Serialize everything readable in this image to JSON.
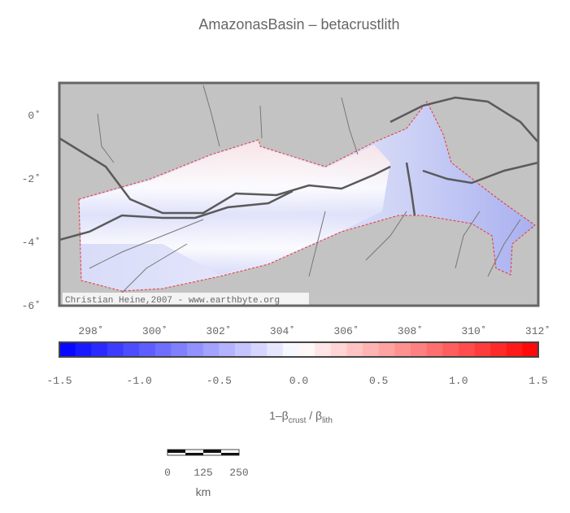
{
  "title": "AmazonasBasin – betacrustlith",
  "map": {
    "lat_labels": [
      "0˚",
      "-2˚",
      "-4˚",
      "-6˚"
    ],
    "lon_labels": [
      "298˚",
      "300˚",
      "302˚",
      "304˚",
      "306˚",
      "308˚",
      "310˚",
      "312˚"
    ],
    "credit": "Christian Heine,2007 - www.earthbyte.org"
  },
  "colorbar": {
    "tick_labels": [
      "-1.5",
      "-1.0",
      "-0.5",
      "0.0",
      "0.5",
      "1.0",
      "1.5"
    ],
    "label": {
      "lead": "1–β",
      "sub_a": "crust",
      "mid": " / β",
      "sub_b": "lith"
    }
  },
  "scale_bar": {
    "tick_labels": [
      "0",
      "125",
      "250"
    ],
    "unit": "km"
  }
}
